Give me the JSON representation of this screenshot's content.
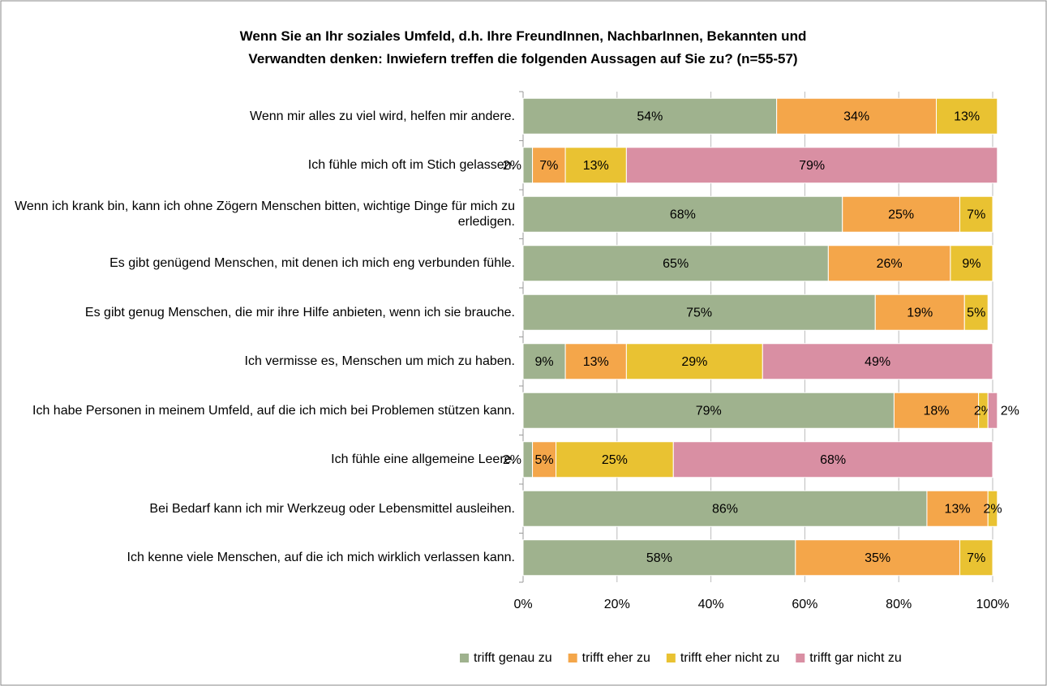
{
  "chart_data": {
    "type": "stacked-bar-horizontal",
    "title": "Wenn Sie an Ihr soziales Umfeld, d.h. Ihre FreundInnen, NachbarInnen, Bekannten und Verwandten denken: Inwiefern treffen die folgenden Aussagen auf Sie zu? (n=55-57)",
    "categories": [
      "Wenn mir alles zu viel wird, helfen mir andere.",
      "Ich fühle mich oft im Stich gelassen.",
      "Wenn ich krank bin, kann ich ohne Zögern Menschen bitten, wichtige Dinge für mich zu erledigen.",
      "Es gibt genügend Menschen, mit denen ich mich eng verbunden fühle.",
      "Es gibt genug Menschen, die mir ihre Hilfe anbieten, wenn ich sie brauche.",
      "Ich vermisse es, Menschen um mich zu haben.",
      "Ich habe Personen in meinem Umfeld, auf die ich mich bei Problemen stützen kann.",
      "Ich fühle eine allgemeine Leere.",
      "Bei Bedarf kann ich mir Werkzeug oder Lebensmittel ausleihen.",
      "Ich kenne viele Menschen, auf die ich mich wirklich verlassen kann."
    ],
    "series": [
      {
        "name": "trifft genau zu",
        "color": "#9fb28e",
        "values": [
          54,
          2,
          68,
          65,
          75,
          9,
          79,
          2,
          86,
          58
        ],
        "value_labels": [
          "54%",
          "2%",
          "68%",
          "65%",
          "75%",
          "9%",
          "79%",
          "2%",
          "86%",
          "58%"
        ]
      },
      {
        "name": "trifft eher zu",
        "color": "#f4a64a",
        "values": [
          34,
          7,
          25,
          26,
          19,
          13,
          18,
          5,
          13,
          35
        ],
        "value_labels": [
          "34%",
          "7%",
          "25%",
          "26%",
          "19%",
          "13%",
          "18%",
          "5%",
          "13%",
          "35%"
        ]
      },
      {
        "name": "trifft eher nicht zu",
        "color": "#e9c232",
        "values": [
          13,
          13,
          7,
          9,
          5,
          29,
          2,
          25,
          2,
          7
        ],
        "value_labels": [
          "13%",
          "13%",
          "7%",
          "9%",
          "5%",
          "29%",
          "2%",
          "25%",
          "2%",
          "7%"
        ]
      },
      {
        "name": "trifft gar nicht zu",
        "color": "#d98fa3",
        "values": [
          null,
          79,
          null,
          null,
          null,
          49,
          2,
          68,
          null,
          null
        ],
        "value_labels": [
          null,
          "79%",
          null,
          null,
          null,
          "49%",
          "2%",
          "68%",
          null,
          null
        ]
      }
    ],
    "xlim": [
      0,
      100
    ],
    "xticks": [
      {
        "value": 0,
        "label": "0%"
      },
      {
        "value": 20,
        "label": "20%"
      },
      {
        "value": 40,
        "label": "40%"
      },
      {
        "value": 60,
        "label": "60%"
      },
      {
        "value": 80,
        "label": "80%"
      },
      {
        "value": 100,
        "label": "100%"
      }
    ],
    "legend": "bottom"
  }
}
